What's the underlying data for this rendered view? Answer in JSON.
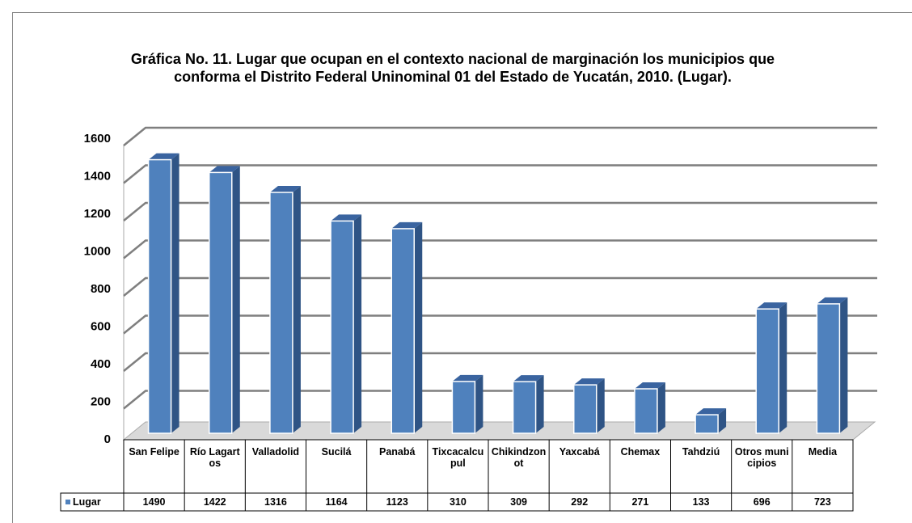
{
  "chart_data": {
    "type": "bar3d",
    "title": "Gráfica No. 11. Lugar que ocupan en el contexto nacional de marginación los municipios que conforma el  Distrito Federal Uninominal 01 del Estado de Yucatán, 2010. (Lugar).",
    "categories": [
      "San Felipe",
      "Río Lagartos",
      "Valladolid",
      "Sucilá",
      "Panabá",
      "Tixcacalcupul",
      "Chikindzonot",
      "Yaxcabá",
      "Chemax",
      "Tahdziú",
      "Otros municipios",
      "Media"
    ],
    "series": [
      {
        "name": "Lugar",
        "color": "#4f81bd",
        "values": [
          1490,
          1422,
          1316,
          1164,
          1123,
          310,
          309,
          292,
          271,
          133,
          696,
          723
        ]
      }
    ],
    "ylim": [
      0,
      1600
    ],
    "yticks": [
      0,
      200,
      400,
      600,
      800,
      1000,
      1200,
      1400,
      1600
    ],
    "grid": true,
    "data_table": true
  }
}
